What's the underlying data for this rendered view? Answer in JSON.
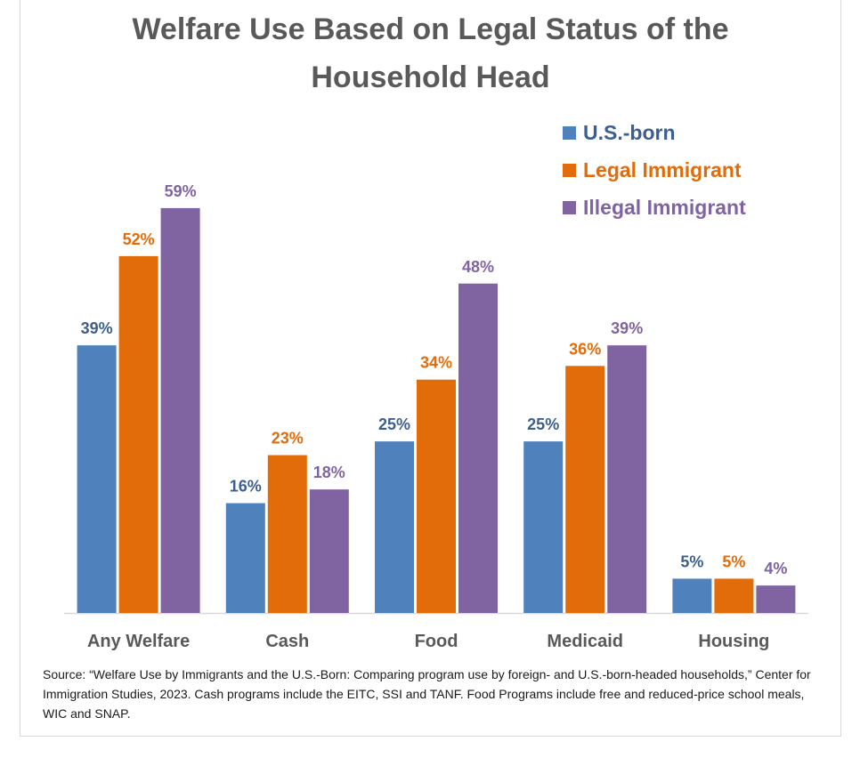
{
  "chart_data": {
    "type": "bar",
    "title": "Welfare Use Based on Legal Status of the Household Head",
    "title_lines": [
      "Welfare Use Based on Legal Status of the",
      "Household Head"
    ],
    "categories": [
      "Any Welfare",
      "Cash",
      "Food",
      "Medicaid",
      "Housing"
    ],
    "series": [
      {
        "name": "U.S.-born",
        "color": "#4f81bd",
        "values": [
          39,
          16,
          25,
          25,
          5
        ],
        "labels": [
          "39%",
          "16%",
          "25%",
          "25%",
          "5%"
        ]
      },
      {
        "name": "Legal Immigrant",
        "color": "#e36c0a",
        "values": [
          52,
          23,
          34,
          36,
          5
        ],
        "labels": [
          "52%",
          "23%",
          "34%",
          "36%",
          "5%"
        ]
      },
      {
        "name": "Illegal Immigrant",
        "color": "#8064a2",
        "values": [
          59,
          18,
          48,
          39,
          4
        ],
        "labels": [
          "59%",
          "18%",
          "48%",
          "39%",
          "4%"
        ]
      }
    ],
    "label_colors": [
      "#3c5f8f",
      "#e36c0a",
      "#8064a2"
    ],
    "ylim": [
      0,
      64
    ],
    "grid": false,
    "legend_position": "top-right",
    "xlabel": "",
    "ylabel": ""
  },
  "source_note": "Source: “Welfare Use by Immigrants and the U.S.-Born: Comparing program use by foreign- and U.S.-born-headed households,” Center for Immigration Studies, 2023. Cash programs include the EITC, SSI and TANF.  Food Programs include free and reduced-price school meals, WIC and SNAP."
}
